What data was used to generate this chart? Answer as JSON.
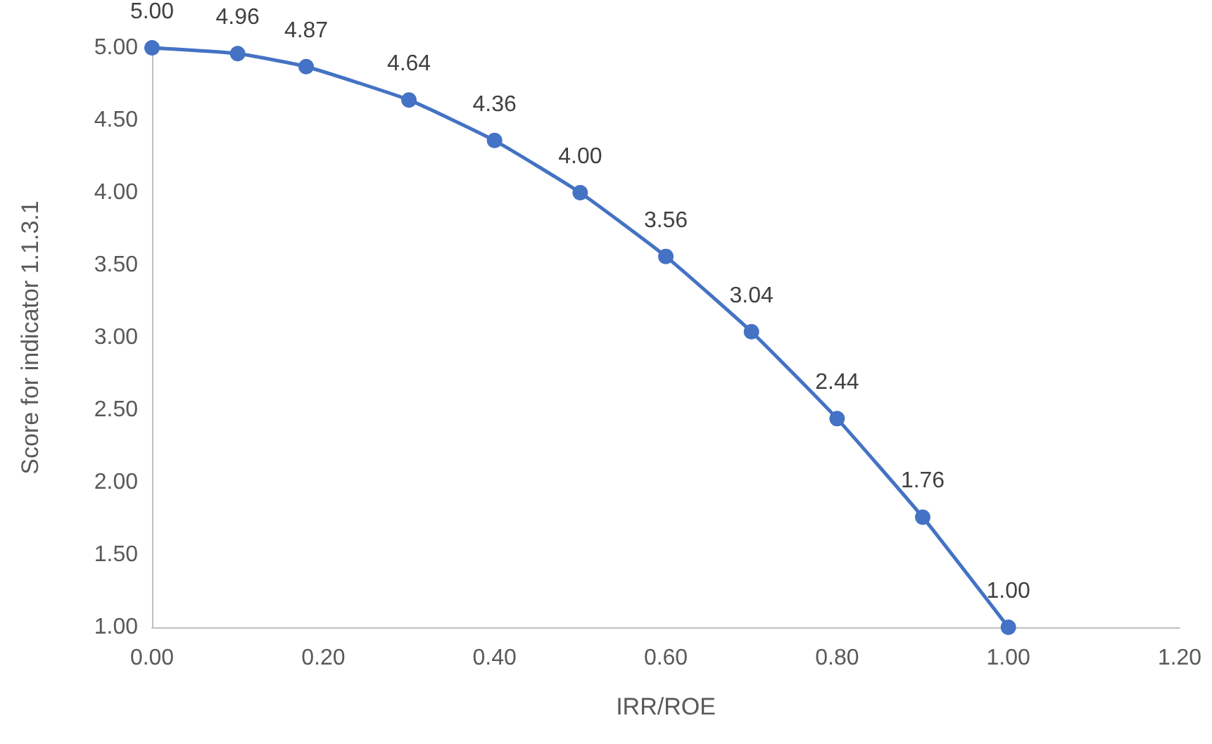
{
  "chart_data": {
    "type": "line",
    "xlabel": "IRR/ROE",
    "ylabel": "Score for indicator 1.1.3.1",
    "x": [
      0,
      0.1,
      0.18,
      0.3,
      0.4,
      0.5,
      0.6,
      0.7,
      0.8,
      0.9,
      1.0
    ],
    "series": [
      {
        "color": "#4472c4",
        "values": [
          5.0,
          4.96,
          4.87,
          4.64,
          4.36,
          4.0,
          3.56,
          3.04,
          2.44,
          1.76,
          1.0
        ],
        "value_labels": [
          "5.00",
          "4.96",
          "4.87",
          "4.64",
          "4.36",
          "4.00",
          "3.56",
          "3.04",
          "2.44",
          "1.76",
          "1.00"
        ]
      }
    ],
    "xlim": [
      0,
      1.2
    ],
    "xticks": [
      {
        "value": 0,
        "label": "0.00"
      },
      {
        "value": 0.2,
        "label": "0.20"
      },
      {
        "value": 0.4,
        "label": "0.40"
      },
      {
        "value": 0.6,
        "label": "0.60"
      },
      {
        "value": 0.8,
        "label": "0.80"
      },
      {
        "value": 1.0,
        "label": "1.00"
      },
      {
        "value": 1.2,
        "label": "1.20"
      }
    ],
    "ylim": [
      1,
      5
    ],
    "yticks": [
      {
        "value": 1,
        "label": "1.00"
      },
      {
        "value": 1.5,
        "label": "1.50"
      },
      {
        "value": 2,
        "label": "2.00"
      },
      {
        "value": 2.5,
        "label": "2.50"
      },
      {
        "value": 3,
        "label": "3.00"
      },
      {
        "value": 3.5,
        "label": "3.50"
      },
      {
        "value": 4,
        "label": "4.00"
      },
      {
        "value": 4.5,
        "label": "4.50"
      },
      {
        "value": 5,
        "label": "5.00"
      }
    ],
    "grid": false,
    "marker": "circle",
    "line_style": "solid"
  }
}
